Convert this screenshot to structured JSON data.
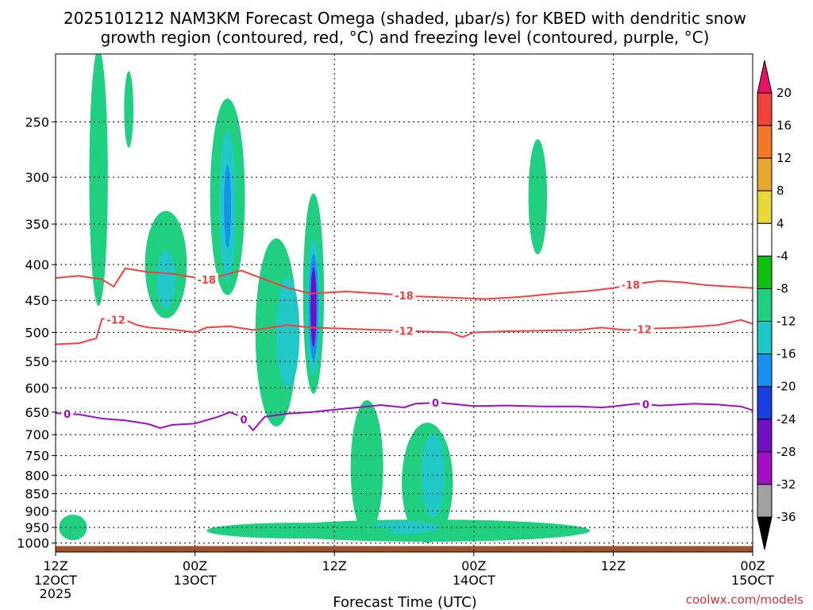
{
  "title": {
    "line1": "2025101212 NAM3KM Forecast Omega (shaded, μbar/s) for KBED with dendritic snow",
    "line2": "growth region (contoured, red, °C) and freezing level (contoured, purple, °C)"
  },
  "credit": "coolwx.com/models",
  "chart_data": {
    "type": "heatmap",
    "title": "2025101212 NAM3KM Forecast Omega (shaded, μbar/s) for KBED with dendritic snow growth region (contoured, red, °C) and freezing level (contoured, purple, °C)",
    "xlabel": "Forecast Time (UTC)",
    "ylabel": "",
    "x_range_hours": [
      0,
      60
    ],
    "y_range_mb": [
      200,
      1030
    ],
    "y_scale": "log-pressure (inverted)",
    "grid": true,
    "y_ticks": [
      250,
      300,
      350,
      400,
      450,
      500,
      550,
      600,
      650,
      700,
      750,
      800,
      850,
      900,
      950,
      1000
    ],
    "x_ticks": [
      {
        "hour": 0,
        "line1": "12Z",
        "line2": "12OCT",
        "line3": "2025"
      },
      {
        "hour": 12,
        "line1": "00Z",
        "line2": "13OCT",
        "line3": ""
      },
      {
        "hour": 24,
        "line1": "12Z",
        "line2": "",
        "line3": ""
      },
      {
        "hour": 36,
        "line1": "00Z",
        "line2": "14OCT",
        "line3": ""
      },
      {
        "hour": 48,
        "line1": "12Z",
        "line2": "",
        "line3": ""
      },
      {
        "hour": 60,
        "line1": "00Z",
        "line2": "15OCT",
        "line3": ""
      }
    ],
    "colorbar": {
      "levels": [
        20,
        16,
        12,
        8,
        4,
        -4,
        -8,
        -12,
        -16,
        -20,
        -24,
        -28,
        -32,
        -36
      ],
      "colors": [
        "#e8116a",
        "#f0413c",
        "#f07828",
        "#e8a830",
        "#e8d838",
        "#ffffff",
        "#10c010",
        "#20d080",
        "#20c8c8",
        "#1890f0",
        "#1840e0",
        "#7010c0",
        "#a010c0",
        "#a0a0a0",
        "#000000"
      ]
    },
    "contours": [
      {
        "name": "dgz_-18",
        "label": "-18",
        "color": "#f04040",
        "points": [
          [
            0,
            418
          ],
          [
            2,
            415
          ],
          [
            4,
            420
          ],
          [
            5,
            430
          ],
          [
            6,
            405
          ],
          [
            8,
            410
          ],
          [
            10,
            412
          ],
          [
            13,
            420
          ],
          [
            16,
            408
          ],
          [
            18,
            420
          ],
          [
            20,
            432
          ],
          [
            22,
            440
          ],
          [
            25,
            437
          ],
          [
            28,
            440
          ],
          [
            31,
            444
          ],
          [
            34,
            446
          ],
          [
            37,
            448
          ],
          [
            40,
            445
          ],
          [
            43,
            440
          ],
          [
            46,
            436
          ],
          [
            48,
            432
          ],
          [
            50,
            426
          ],
          [
            52,
            422
          ],
          [
            54,
            424
          ],
          [
            56,
            428
          ],
          [
            58,
            430
          ],
          [
            60,
            432
          ]
        ],
        "label_hours": [
          13,
          30,
          49.5
        ]
      },
      {
        "name": "dgz_-12",
        "label": "-12",
        "color": "#f04040",
        "points": [
          [
            0,
            520
          ],
          [
            2,
            518
          ],
          [
            3.5,
            510
          ],
          [
            4,
            478
          ],
          [
            6,
            480
          ],
          [
            7,
            488
          ],
          [
            8,
            492
          ],
          [
            10,
            495
          ],
          [
            12,
            500
          ],
          [
            13,
            492
          ],
          [
            15,
            490
          ],
          [
            17,
            496
          ],
          [
            20,
            488
          ],
          [
            22,
            492
          ],
          [
            25,
            494
          ],
          [
            28,
            496
          ],
          [
            31,
            498
          ],
          [
            34,
            500
          ],
          [
            35,
            508
          ],
          [
            36,
            500
          ],
          [
            39,
            498
          ],
          [
            42,
            497
          ],
          [
            45,
            496
          ],
          [
            47,
            492
          ],
          [
            49,
            496
          ],
          [
            51,
            494
          ],
          [
            54,
            492
          ],
          [
            57,
            488
          ],
          [
            59,
            480
          ],
          [
            60,
            486
          ]
        ],
        "label_hours": [
          5.2,
          30,
          50.5
        ]
      },
      {
        "name": "freezing_0",
        "label": "0",
        "color": "#9a10c0",
        "points": [
          [
            0,
            652
          ],
          [
            2,
            655
          ],
          [
            4,
            664
          ],
          [
            6,
            668
          ],
          [
            8,
            676
          ],
          [
            9,
            685
          ],
          [
            10,
            678
          ],
          [
            12,
            675
          ],
          [
            14,
            660
          ],
          [
            15,
            650
          ],
          [
            16,
            660
          ],
          [
            17,
            690
          ],
          [
            18,
            660
          ],
          [
            20,
            653
          ],
          [
            22,
            650
          ],
          [
            24,
            645
          ],
          [
            26,
            640
          ],
          [
            28,
            635
          ],
          [
            30,
            640
          ],
          [
            31,
            632
          ],
          [
            33,
            630
          ],
          [
            36,
            637
          ],
          [
            39,
            636
          ],
          [
            42,
            638
          ],
          [
            45,
            638
          ],
          [
            47,
            640
          ],
          [
            48,
            638
          ],
          [
            50,
            632
          ],
          [
            52,
            636
          ],
          [
            55,
            632
          ],
          [
            57,
            634
          ],
          [
            59,
            638
          ],
          [
            60,
            646
          ]
        ],
        "label_hours": [
          1,
          16.2,
          32.7,
          50.8
        ]
      }
    ],
    "shaded_regions": [
      {
        "level": -8,
        "cx": 1.5,
        "cy": 950,
        "rx": 1.2,
        "ry": 40
      },
      {
        "level": -8,
        "cx": 3.7,
        "cy": 300,
        "rx": 0.8,
        "ry": 120
      },
      {
        "level": -8,
        "cx": 6.3,
        "cy": 240,
        "rx": 0.4,
        "ry": 30
      },
      {
        "level": -8,
        "cx": 9.5,
        "cy": 400,
        "rx": 1.8,
        "ry": 70
      },
      {
        "level": -12,
        "cx": 9.5,
        "cy": 420,
        "rx": 0.8,
        "ry": 40
      },
      {
        "level": -8,
        "cx": 14.8,
        "cy": 320,
        "rx": 1.5,
        "ry": 100
      },
      {
        "level": -12,
        "cx": 14.8,
        "cy": 330,
        "rx": 0.7,
        "ry": 80
      },
      {
        "level": -16,
        "cx": 14.8,
        "cy": 330,
        "rx": 0.3,
        "ry": 45
      },
      {
        "level": -8,
        "cx": 19,
        "cy": 500,
        "rx": 1.8,
        "ry": 150
      },
      {
        "level": -12,
        "cx": 20,
        "cy": 500,
        "rx": 1.0,
        "ry": 90
      },
      {
        "level": -8,
        "cx": 22.2,
        "cy": 440,
        "rx": 0.9,
        "ry": 140
      },
      {
        "level": -12,
        "cx": 22.2,
        "cy": 460,
        "rx": 0.6,
        "ry": 100
      },
      {
        "level": -16,
        "cx": 22.2,
        "cy": 460,
        "rx": 0.4,
        "ry": 80
      },
      {
        "level": -24,
        "cx": 22.2,
        "cy": 460,
        "rx": 0.25,
        "ry": 60
      },
      {
        "level": -8,
        "cx": 26.8,
        "cy": 780,
        "rx": 1.4,
        "ry": 170
      },
      {
        "level": -8,
        "cx": 32,
        "cy": 820,
        "rx": 2.2,
        "ry": 160
      },
      {
        "level": -12,
        "cx": 32.5,
        "cy": 800,
        "rx": 1.0,
        "ry": 110
      },
      {
        "level": -8,
        "cx": 32,
        "cy": 960,
        "rx": 14,
        "ry": 35
      },
      {
        "level": -12,
        "cx": 30,
        "cy": 950,
        "rx": 3,
        "ry": 20
      },
      {
        "level": -8,
        "cx": 41.5,
        "cy": 320,
        "rx": 0.8,
        "ry": 60
      },
      {
        "level": -8,
        "cx": 21,
        "cy": 960,
        "rx": 8,
        "ry": 25
      }
    ],
    "terrain_hpa": 1010
  }
}
